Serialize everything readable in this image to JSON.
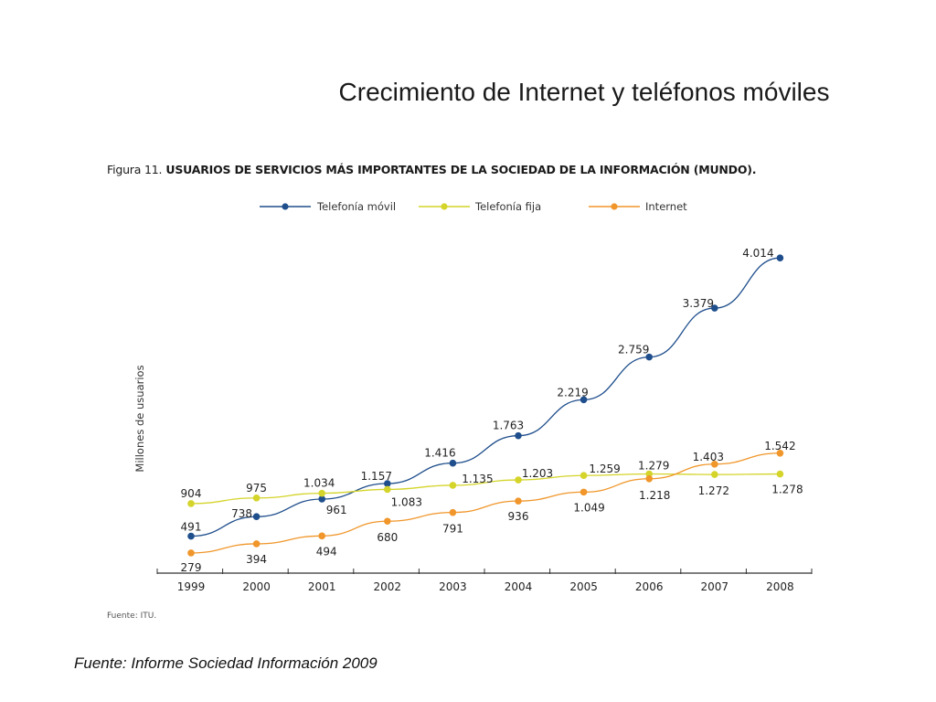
{
  "slide": {
    "title": "Crecimiento de Internet y teléfonos móviles",
    "source": "Fuente: Informe Sociedad Información 2009"
  },
  "figure": {
    "label": "Figura 11.",
    "title": "USUARIOS DE SERVICIOS MÁS IMPORTANTES DE LA SOCIEDAD DE LA INFORMACIÓN (MUNDO).",
    "source": "Fuente: ITU."
  },
  "chart_data": {
    "type": "line",
    "title": "USUARIOS DE SERVICIOS MÁS IMPORTANTES DE LA SOCIEDAD DE LA INFORMACIÓN (MUNDO).",
    "xlabel": "",
    "ylabel": "Millones de usuarios",
    "x": [
      "1999",
      "2000",
      "2001",
      "2002",
      "2003",
      "2004",
      "2005",
      "2006",
      "2007",
      "2008"
    ],
    "ylim": [
      0,
      4500
    ],
    "grid": false,
    "legend": "top-center",
    "series": [
      {
        "name": "Telefonía móvil",
        "color": "#1f4e8c",
        "values": [
          491,
          738,
          961,
          1157,
          1416,
          1763,
          2219,
          2759,
          3379,
          4014
        ],
        "labels": [
          "491",
          "738",
          "961",
          "1.157",
          "1.416",
          "1.763",
          "2.219",
          "2.759",
          "3.379",
          "4.014"
        ]
      },
      {
        "name": "Telefonía fija",
        "color": "#d4d42a",
        "values": [
          904,
          975,
          1034,
          1083,
          1135,
          1203,
          1259,
          1279,
          1272,
          1278
        ],
        "labels": [
          "904",
          "975",
          "1.034",
          "1.083",
          "1.135",
          "1.203",
          "1.259",
          "1.279",
          "1.272",
          "1.278"
        ]
      },
      {
        "name": "Internet",
        "color": "#f0962a",
        "values": [
          279,
          394,
          494,
          680,
          791,
          936,
          1049,
          1218,
          1403,
          1542
        ],
        "labels": [
          "279",
          "394",
          "494",
          "680",
          "791",
          "936",
          "1.049",
          "1.218",
          "1.403",
          "1.542"
        ]
      }
    ]
  }
}
